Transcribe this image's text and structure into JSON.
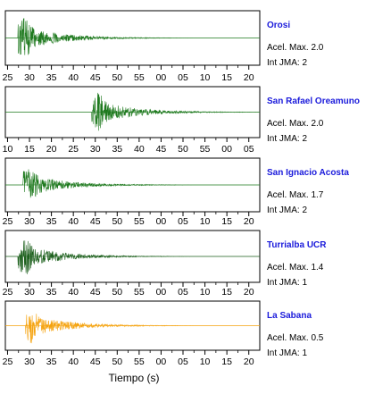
{
  "chart_data": [
    {
      "type": "line",
      "station": "Orosi",
      "accel_label": "Acel. Max. 2.0",
      "jma_label": "Int JMA: 2",
      "color": "#1f7a1f",
      "tick_labels": [
        "25",
        "30",
        "35",
        "40",
        "45",
        "50",
        "55",
        "00",
        "05",
        "10",
        "15",
        "20"
      ],
      "onset": 0.05,
      "amp_scale": 1.0
    },
    {
      "type": "line",
      "station": "San Rafael Oreamuno",
      "accel_label": "Acel. Max. 2.0",
      "jma_label": "Int JMA: 2",
      "color": "#1f7a1f",
      "tick_labels": [
        "10",
        "15",
        "20",
        "25",
        "30",
        "35",
        "40",
        "45",
        "50",
        "55",
        "00",
        "05"
      ],
      "onset": 0.34,
      "amp_scale": 1.0
    },
    {
      "type": "line",
      "station": "San Ignacio Acosta",
      "accel_label": "Acel. Max. 1.7",
      "jma_label": "Int JMA: 2",
      "color": "#1f7a1f",
      "tick_labels": [
        "25",
        "30",
        "35",
        "40",
        "45",
        "50",
        "55",
        "00",
        "05",
        "10",
        "15",
        "20"
      ],
      "onset": 0.07,
      "amp_scale": 0.9
    },
    {
      "type": "line",
      "station": "Turrialba UCR",
      "accel_label": "Acel. Max. 1.4",
      "jma_label": "Int JMA: 1",
      "color": "#1a5e1a",
      "tick_labels": [
        "25",
        "30",
        "35",
        "40",
        "45",
        "50",
        "55",
        "00",
        "05",
        "10",
        "15",
        "20"
      ],
      "onset": 0.05,
      "amp_scale": 1.0
    },
    {
      "type": "line",
      "station": "La Sabana",
      "accel_label": "Acel. Max. 0.5",
      "jma_label": "Int JMA: 1",
      "color": "#f5a30f",
      "tick_labels": [
        "25",
        "30",
        "35",
        "40",
        "45",
        "50",
        "55",
        "00",
        "05",
        "10",
        "15",
        "20"
      ],
      "onset": 0.08,
      "amp_scale": 1.0
    }
  ],
  "xlabel": "Tiempo (s)"
}
